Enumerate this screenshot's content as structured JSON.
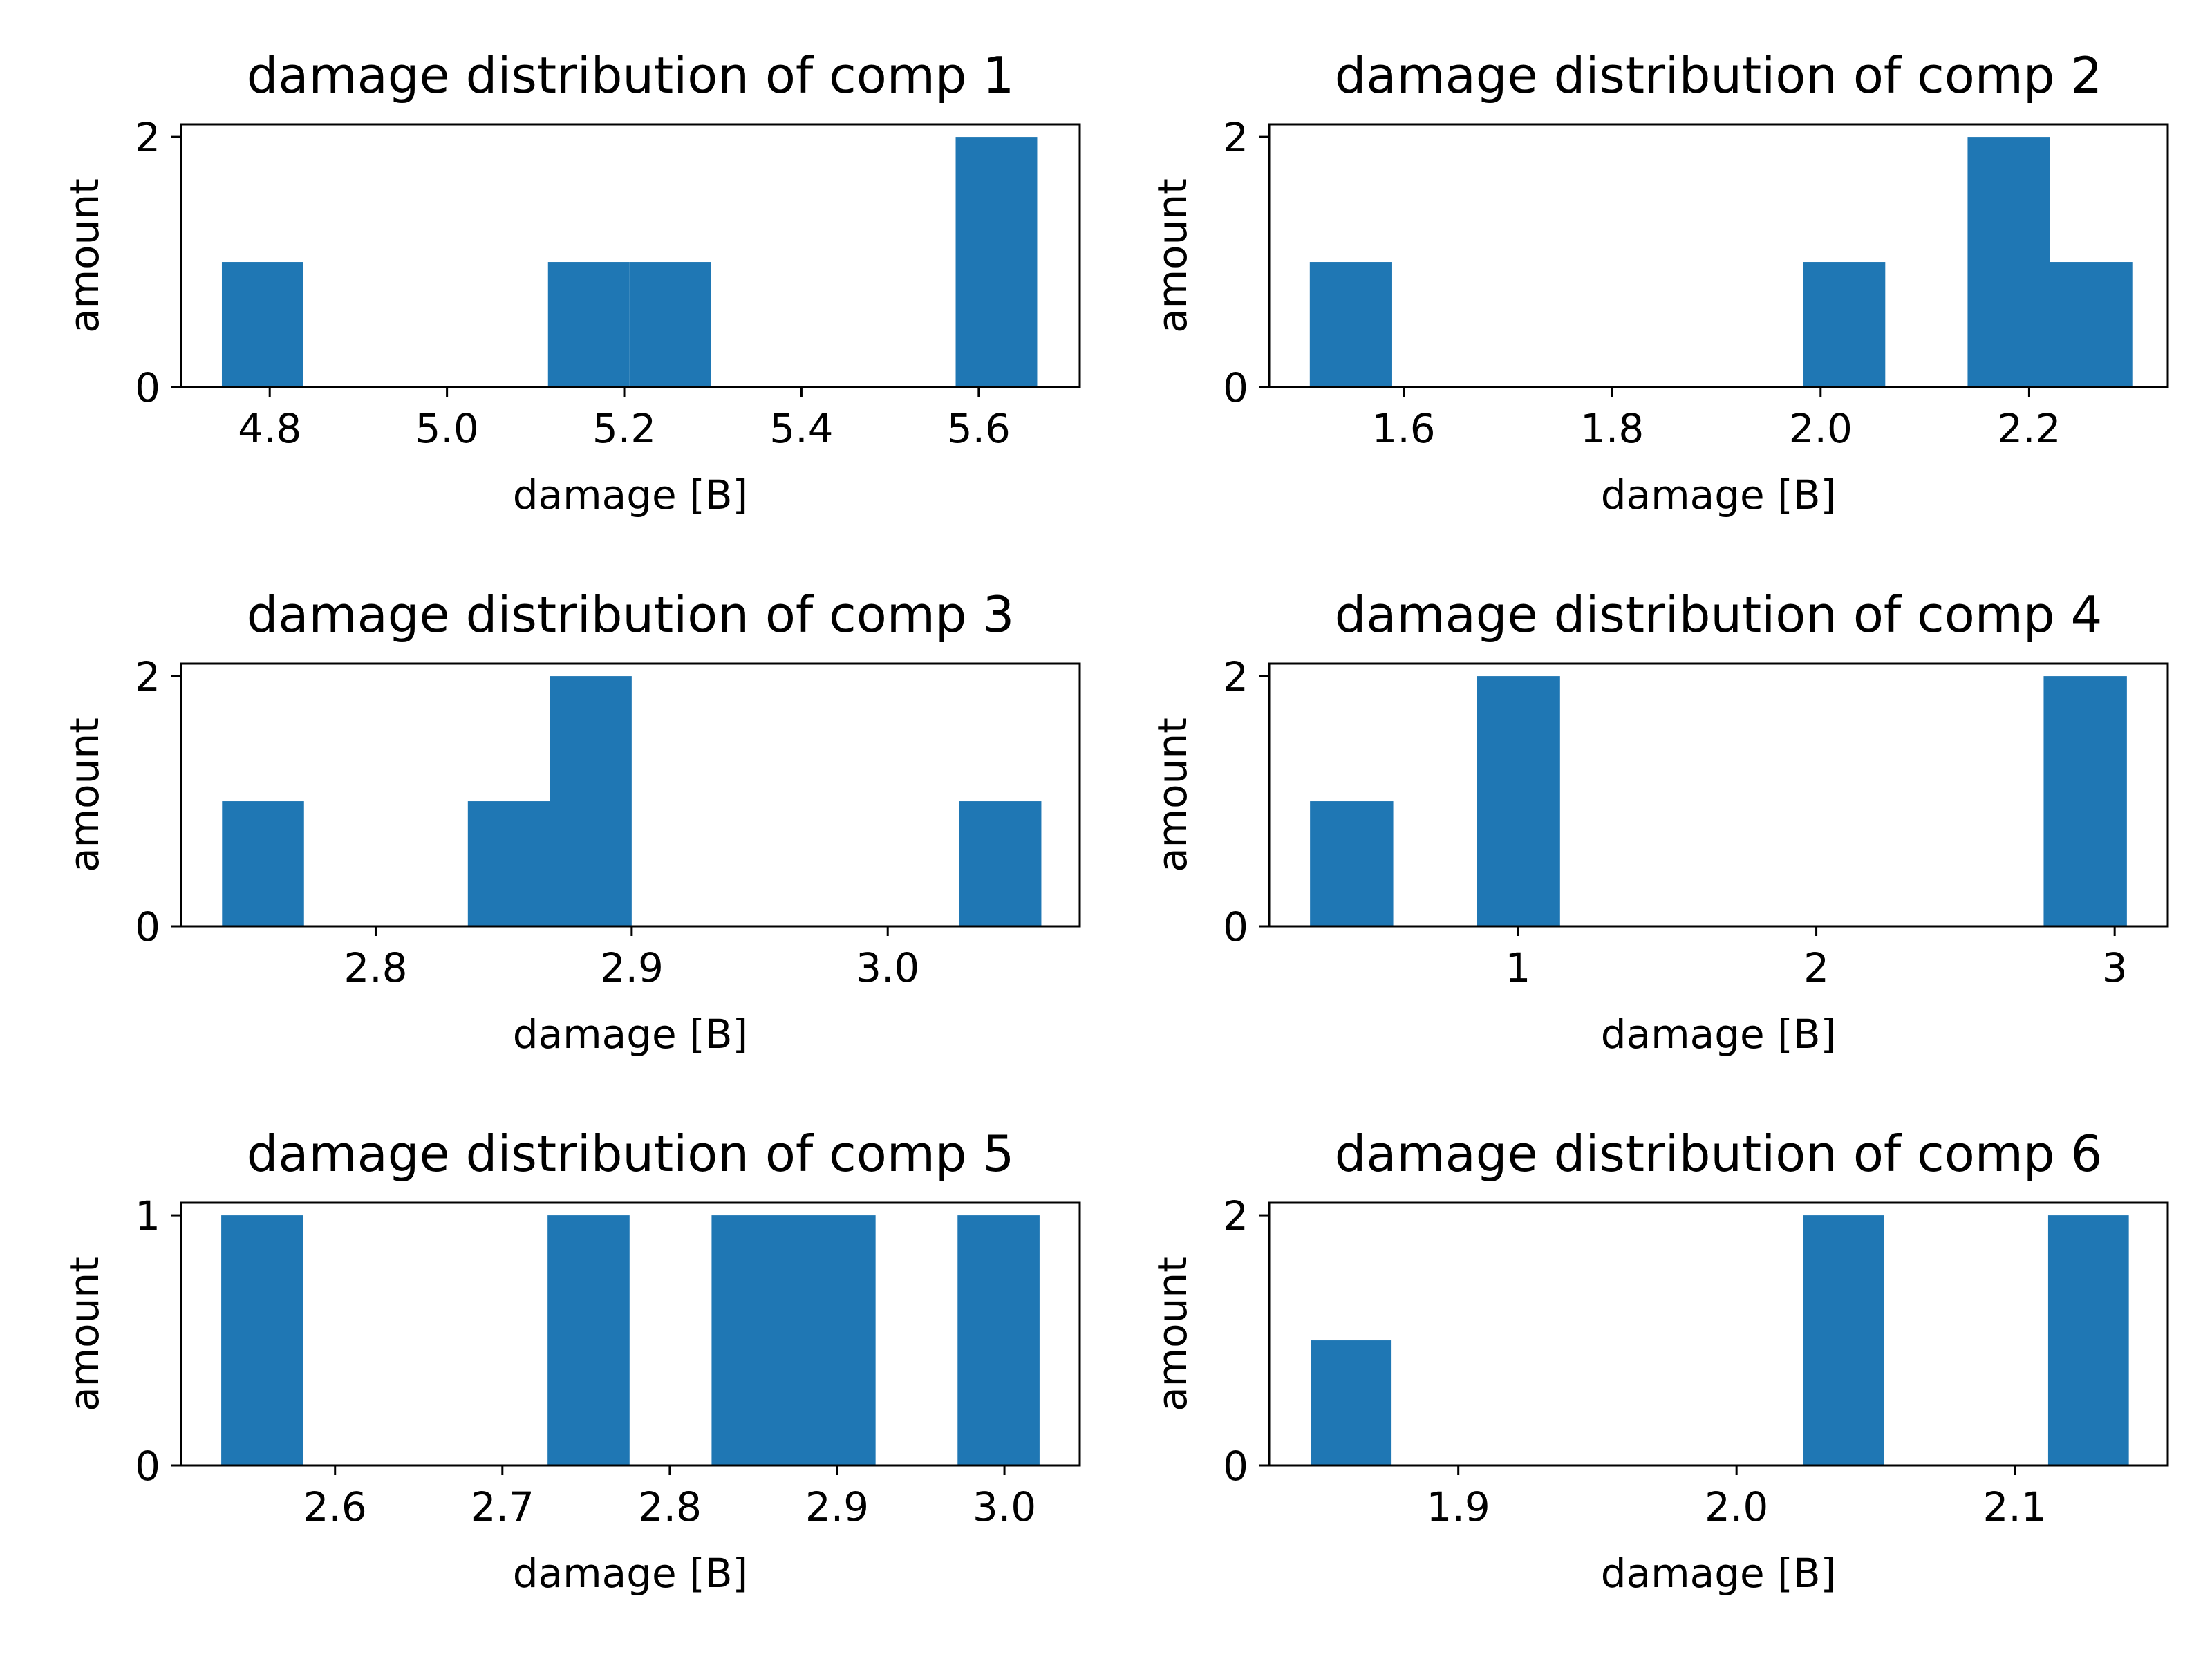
{
  "chart_data": [
    {
      "type": "bar",
      "title": "damage distribution of comp 1",
      "xlabel": "damage [B]",
      "ylabel": "amount",
      "xlim": [
        4.7,
        5.714
      ],
      "ylim": [
        0,
        2.1
      ],
      "xticks": [
        4.8,
        5.0,
        5.2,
        5.4,
        5.6
      ],
      "xtick_labels": [
        "4.8",
        "5.0",
        "5.2",
        "5.4",
        "5.6"
      ],
      "yticks": [
        0,
        2
      ],
      "ytick_labels": [
        "0",
        "2"
      ],
      "bars": [
        {
          "x0": 4.746,
          "x1": 4.838,
          "value": 1
        },
        {
          "x0": 5.114,
          "x1": 5.206,
          "value": 1
        },
        {
          "x0": 5.206,
          "x1": 5.298,
          "value": 1
        },
        {
          "x0": 5.574,
          "x1": 5.666,
          "value": 2
        }
      ]
    },
    {
      "type": "bar",
      "title": "damage distribution of comp 2",
      "xlabel": "damage [B]",
      "ylabel": "amount",
      "xlim": [
        1.471,
        2.333
      ],
      "ylim": [
        0,
        2.1
      ],
      "xticks": [
        1.6,
        1.8,
        2.0,
        2.2
      ],
      "xtick_labels": [
        "1.6",
        "1.8",
        "2.0",
        "2.2"
      ],
      "yticks": [
        0,
        2
      ],
      "ytick_labels": [
        "0",
        "2"
      ],
      "bars": [
        {
          "x0": 1.51,
          "x1": 1.589,
          "value": 1
        },
        {
          "x0": 1.983,
          "x1": 2.062,
          "value": 1
        },
        {
          "x0": 2.141,
          "x1": 2.22,
          "value": 2
        },
        {
          "x0": 2.22,
          "x1": 2.299,
          "value": 1
        }
      ]
    },
    {
      "type": "bar",
      "title": "damage distribution of comp 3",
      "xlabel": "damage [B]",
      "ylabel": "amount",
      "xlim": [
        2.724,
        3.075
      ],
      "ylim": [
        0,
        2.1
      ],
      "xticks": [
        2.8,
        2.9,
        3.0
      ],
      "xtick_labels": [
        "2.8",
        "2.9",
        "3.0"
      ],
      "yticks": [
        0,
        2
      ],
      "ytick_labels": [
        "0",
        "2"
      ],
      "bars": [
        {
          "x0": 2.74,
          "x1": 2.772,
          "value": 1
        },
        {
          "x0": 2.836,
          "x1": 2.868,
          "value": 1
        },
        {
          "x0": 2.868,
          "x1": 2.9,
          "value": 2
        },
        {
          "x0": 3.028,
          "x1": 3.06,
          "value": 1
        }
      ]
    },
    {
      "type": "bar",
      "title": "damage distribution of comp 4",
      "xlabel": "damage [B]",
      "ylabel": "amount",
      "xlim": [
        0.166,
        3.178
      ],
      "ylim": [
        0,
        2.1
      ],
      "xticks": [
        1,
        2,
        3
      ],
      "xtick_labels": [
        "1",
        "2",
        "3"
      ],
      "yticks": [
        0,
        2
      ],
      "ytick_labels": [
        "0",
        "2"
      ],
      "bars": [
        {
          "x0": 0.303,
          "x1": 0.582,
          "value": 1
        },
        {
          "x0": 0.862,
          "x1": 1.141,
          "value": 2
        },
        {
          "x0": 2.762,
          "x1": 3.041,
          "value": 2
        }
      ]
    },
    {
      "type": "bar",
      "title": "damage distribution of comp 5",
      "xlabel": "damage [B]",
      "ylabel": "amount",
      "xlim": [
        2.508,
        3.045
      ],
      "ylim": [
        0,
        1.05
      ],
      "xticks": [
        2.6,
        2.7,
        2.8,
        2.9,
        3.0
      ],
      "xtick_labels": [
        "2.6",
        "2.7",
        "2.8",
        "2.9",
        "3.0"
      ],
      "yticks": [
        0,
        1
      ],
      "ytick_labels": [
        "0",
        "1"
      ],
      "bars": [
        {
          "x0": 2.532,
          "x1": 2.581,
          "value": 1
        },
        {
          "x0": 2.727,
          "x1": 2.776,
          "value": 1
        },
        {
          "x0": 2.825,
          "x1": 2.874,
          "value": 1
        },
        {
          "x0": 2.874,
          "x1": 2.923,
          "value": 1
        },
        {
          "x0": 2.972,
          "x1": 3.021,
          "value": 1
        }
      ]
    },
    {
      "type": "bar",
      "title": "damage distribution of comp 6",
      "xlabel": "damage [B]",
      "ylabel": "amount",
      "xlim": [
        1.832,
        2.155
      ],
      "ylim": [
        0,
        2.1
      ],
      "xticks": [
        1.9,
        2.0,
        2.1
      ],
      "xtick_labels": [
        "1.9",
        "2.0",
        "2.1"
      ],
      "yticks": [
        0,
        2
      ],
      "ytick_labels": [
        "0",
        "2"
      ],
      "bars": [
        {
          "x0": 1.847,
          "x1": 1.876,
          "value": 1
        },
        {
          "x0": 2.024,
          "x1": 2.053,
          "value": 2
        },
        {
          "x0": 2.112,
          "x1": 2.141,
          "value": 2
        }
      ]
    }
  ],
  "colors": {
    "bar": "#1f77b4",
    "axis": "#000000",
    "background": "#ffffff"
  }
}
